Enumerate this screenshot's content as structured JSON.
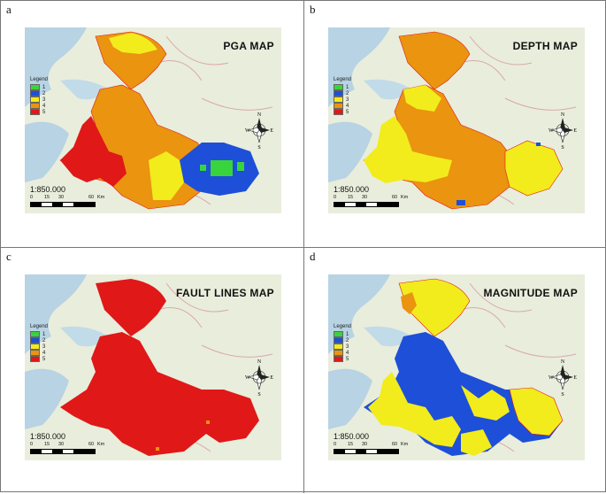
{
  "panels": [
    {
      "id": "a",
      "label": "a",
      "title": "PGA MAP",
      "legend_title": "Legend",
      "legend": [
        "1",
        "2",
        "3",
        "4",
        "5"
      ],
      "scale_ratio": "1:850.000",
      "scale_ticks": [
        "0",
        "15",
        "30",
        "60"
      ],
      "scale_unit": "Km",
      "compass": {
        "n": "N",
        "e": "E",
        "s": "S",
        "w": "W"
      }
    },
    {
      "id": "b",
      "label": "b",
      "title": "DEPTH MAP",
      "legend_title": "Legend",
      "legend": [
        "1",
        "2",
        "3",
        "4",
        "5"
      ],
      "scale_ratio": "1:850.000",
      "scale_ticks": [
        "0",
        "15",
        "30",
        "60"
      ],
      "scale_unit": "Km",
      "compass": {
        "n": "N",
        "e": "E",
        "s": "S",
        "w": "W"
      }
    },
    {
      "id": "c",
      "label": "c",
      "title": "FAULT LINES MAP",
      "legend_title": "Legend",
      "legend": [
        "1",
        "2",
        "3",
        "4",
        "5"
      ],
      "scale_ratio": "1:850.000",
      "scale_ticks": [
        "0",
        "15",
        "30",
        "60"
      ],
      "scale_unit": "Km",
      "compass": {
        "n": "N",
        "e": "E",
        "s": "S",
        "w": "W"
      }
    },
    {
      "id": "d",
      "label": "d",
      "title": "MAGNITUDE MAP",
      "legend_title": "Legend",
      "legend": [
        "1",
        "2",
        "3",
        "4",
        "5"
      ],
      "scale_ratio": "1:850.000",
      "scale_ticks": [
        "0",
        "15",
        "30",
        "60"
      ],
      "scale_unit": "Km",
      "compass": {
        "n": "N",
        "e": "E",
        "s": "S",
        "w": "W"
      }
    }
  ],
  "legend_colors": [
    "#39d43b",
    "#1e4fd8",
    "#f2ec1c",
    "#ea9410",
    "#e01818"
  ]
}
